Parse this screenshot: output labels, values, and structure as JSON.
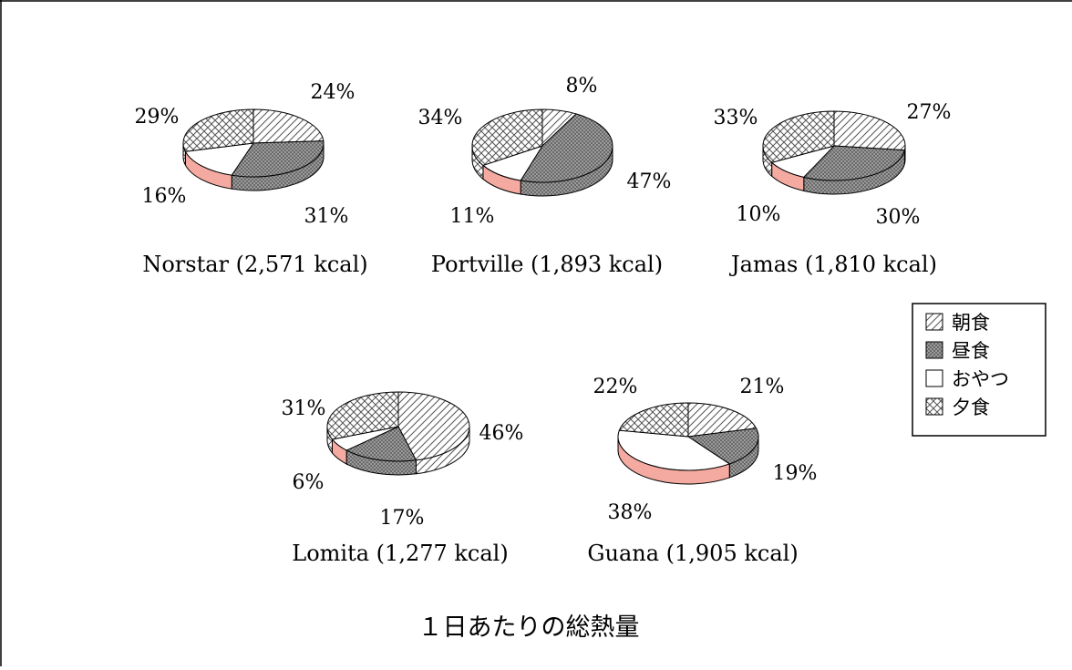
{
  "colors": {
    "breakfast": "#ffffff",
    "lunch": "#8c8c8c",
    "snack": "#ffffff",
    "snack_side": "#f4aaa0",
    "dinner": "#ffffff"
  },
  "chart_data": {
    "type": "pie",
    "title": "１日あたりの総熱量",
    "legend": {
      "placement": "right",
      "entries": [
        "朝食",
        "昼食",
        "おやつ",
        "夕食"
      ]
    },
    "categories": [
      "朝食",
      "昼食",
      "おやつ",
      "夕食"
    ],
    "charts": [
      {
        "label": "Norstar (2,571 kcal)",
        "values": [
          24,
          31,
          16,
          29
        ],
        "labels": [
          "24%",
          "31%",
          "16%",
          "29%"
        ]
      },
      {
        "label": "Portville (1,893 kcal)",
        "values": [
          8,
          47,
          11,
          34
        ],
        "labels": [
          "8%",
          "47%",
          "11%",
          "34%"
        ]
      },
      {
        "label": "Jamas (1,810 kcal)",
        "values": [
          27,
          30,
          10,
          33
        ],
        "labels": [
          "27%",
          "30%",
          "10%",
          "33%"
        ]
      },
      {
        "label": "Lomita (1,277 kcal)",
        "values": [
          46,
          17,
          6,
          31
        ],
        "labels": [
          "46%",
          "17%",
          "6%",
          "31%"
        ]
      },
      {
        "label": "Guana (1,905 kcal)",
        "values": [
          21,
          19,
          38,
          22
        ],
        "labels": [
          "21%",
          "19%",
          "38%",
          "22%"
        ]
      }
    ]
  }
}
